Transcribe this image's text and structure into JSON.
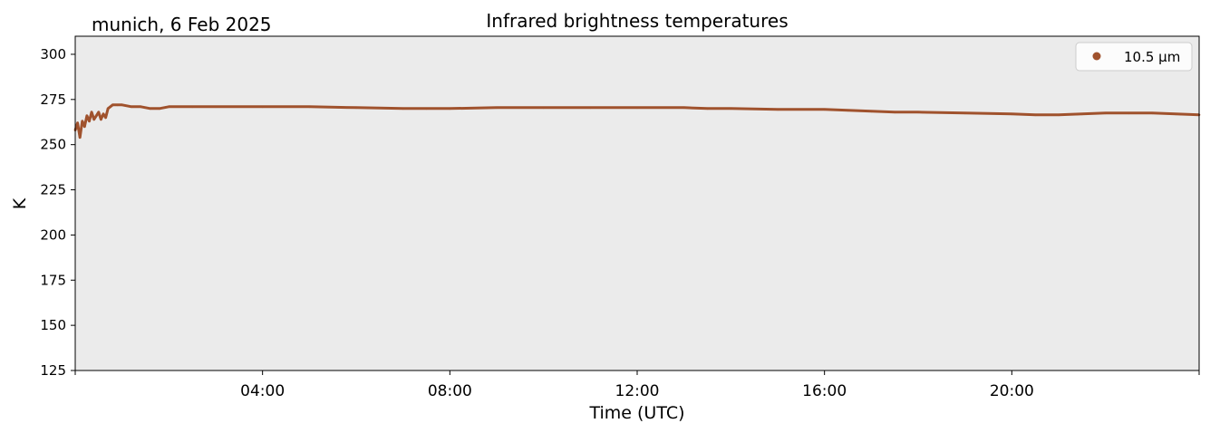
{
  "chart_data": {
    "type": "line",
    "title": "Infrared brightness temperatures",
    "subtitle": "munich, 6 Feb 2025",
    "xlabel": "Time (UTC)",
    "ylabel": "K",
    "xlim_hours": [
      0,
      24
    ],
    "ylim": [
      125,
      310
    ],
    "x_ticks": [
      {
        "hour": 4,
        "label": "04:00"
      },
      {
        "hour": 8,
        "label": "08:00"
      },
      {
        "hour": 12,
        "label": "12:00"
      },
      {
        "hour": 16,
        "label": "16:00"
      },
      {
        "hour": 20,
        "label": "20:00"
      }
    ],
    "y_ticks": [
      125,
      150,
      175,
      200,
      225,
      250,
      275,
      300
    ],
    "background_color": "#ebebeb",
    "grid": false,
    "legend": {
      "position": "top-right"
    },
    "series": [
      {
        "name": "10.5 µm",
        "color": "#a0522d",
        "x_hours": [
          0.0,
          0.05,
          0.1,
          0.15,
          0.2,
          0.25,
          0.3,
          0.35,
          0.4,
          0.45,
          0.5,
          0.55,
          0.6,
          0.65,
          0.7,
          0.8,
          0.9,
          1.0,
          1.2,
          1.4,
          1.6,
          1.8,
          2.0,
          2.5,
          3.0,
          4.0,
          5.0,
          6.0,
          7.0,
          7.5,
          8.0,
          9.0,
          10.0,
          11.0,
          12.0,
          13.0,
          13.5,
          14.0,
          15.0,
          16.0,
          16.5,
          17.0,
          17.5,
          18.0,
          19.0,
          20.0,
          20.5,
          21.0,
          21.5,
          22.0,
          22.5,
          23.0,
          23.5,
          24.0
        ],
        "y_kelvin": [
          258,
          262,
          254,
          263,
          260,
          266,
          263,
          268,
          264,
          266,
          268,
          264,
          267,
          265,
          270,
          272,
          272,
          272,
          271,
          271,
          270,
          270,
          271,
          271,
          271,
          271,
          271,
          270.5,
          270,
          270,
          270,
          270.5,
          270.5,
          270.5,
          270.5,
          270.5,
          270,
          270,
          269.5,
          269.5,
          269,
          268.5,
          268,
          268,
          267.5,
          267,
          266.5,
          266.5,
          267,
          267.5,
          267.5,
          267.5,
          267,
          266.5
        ]
      }
    ]
  }
}
